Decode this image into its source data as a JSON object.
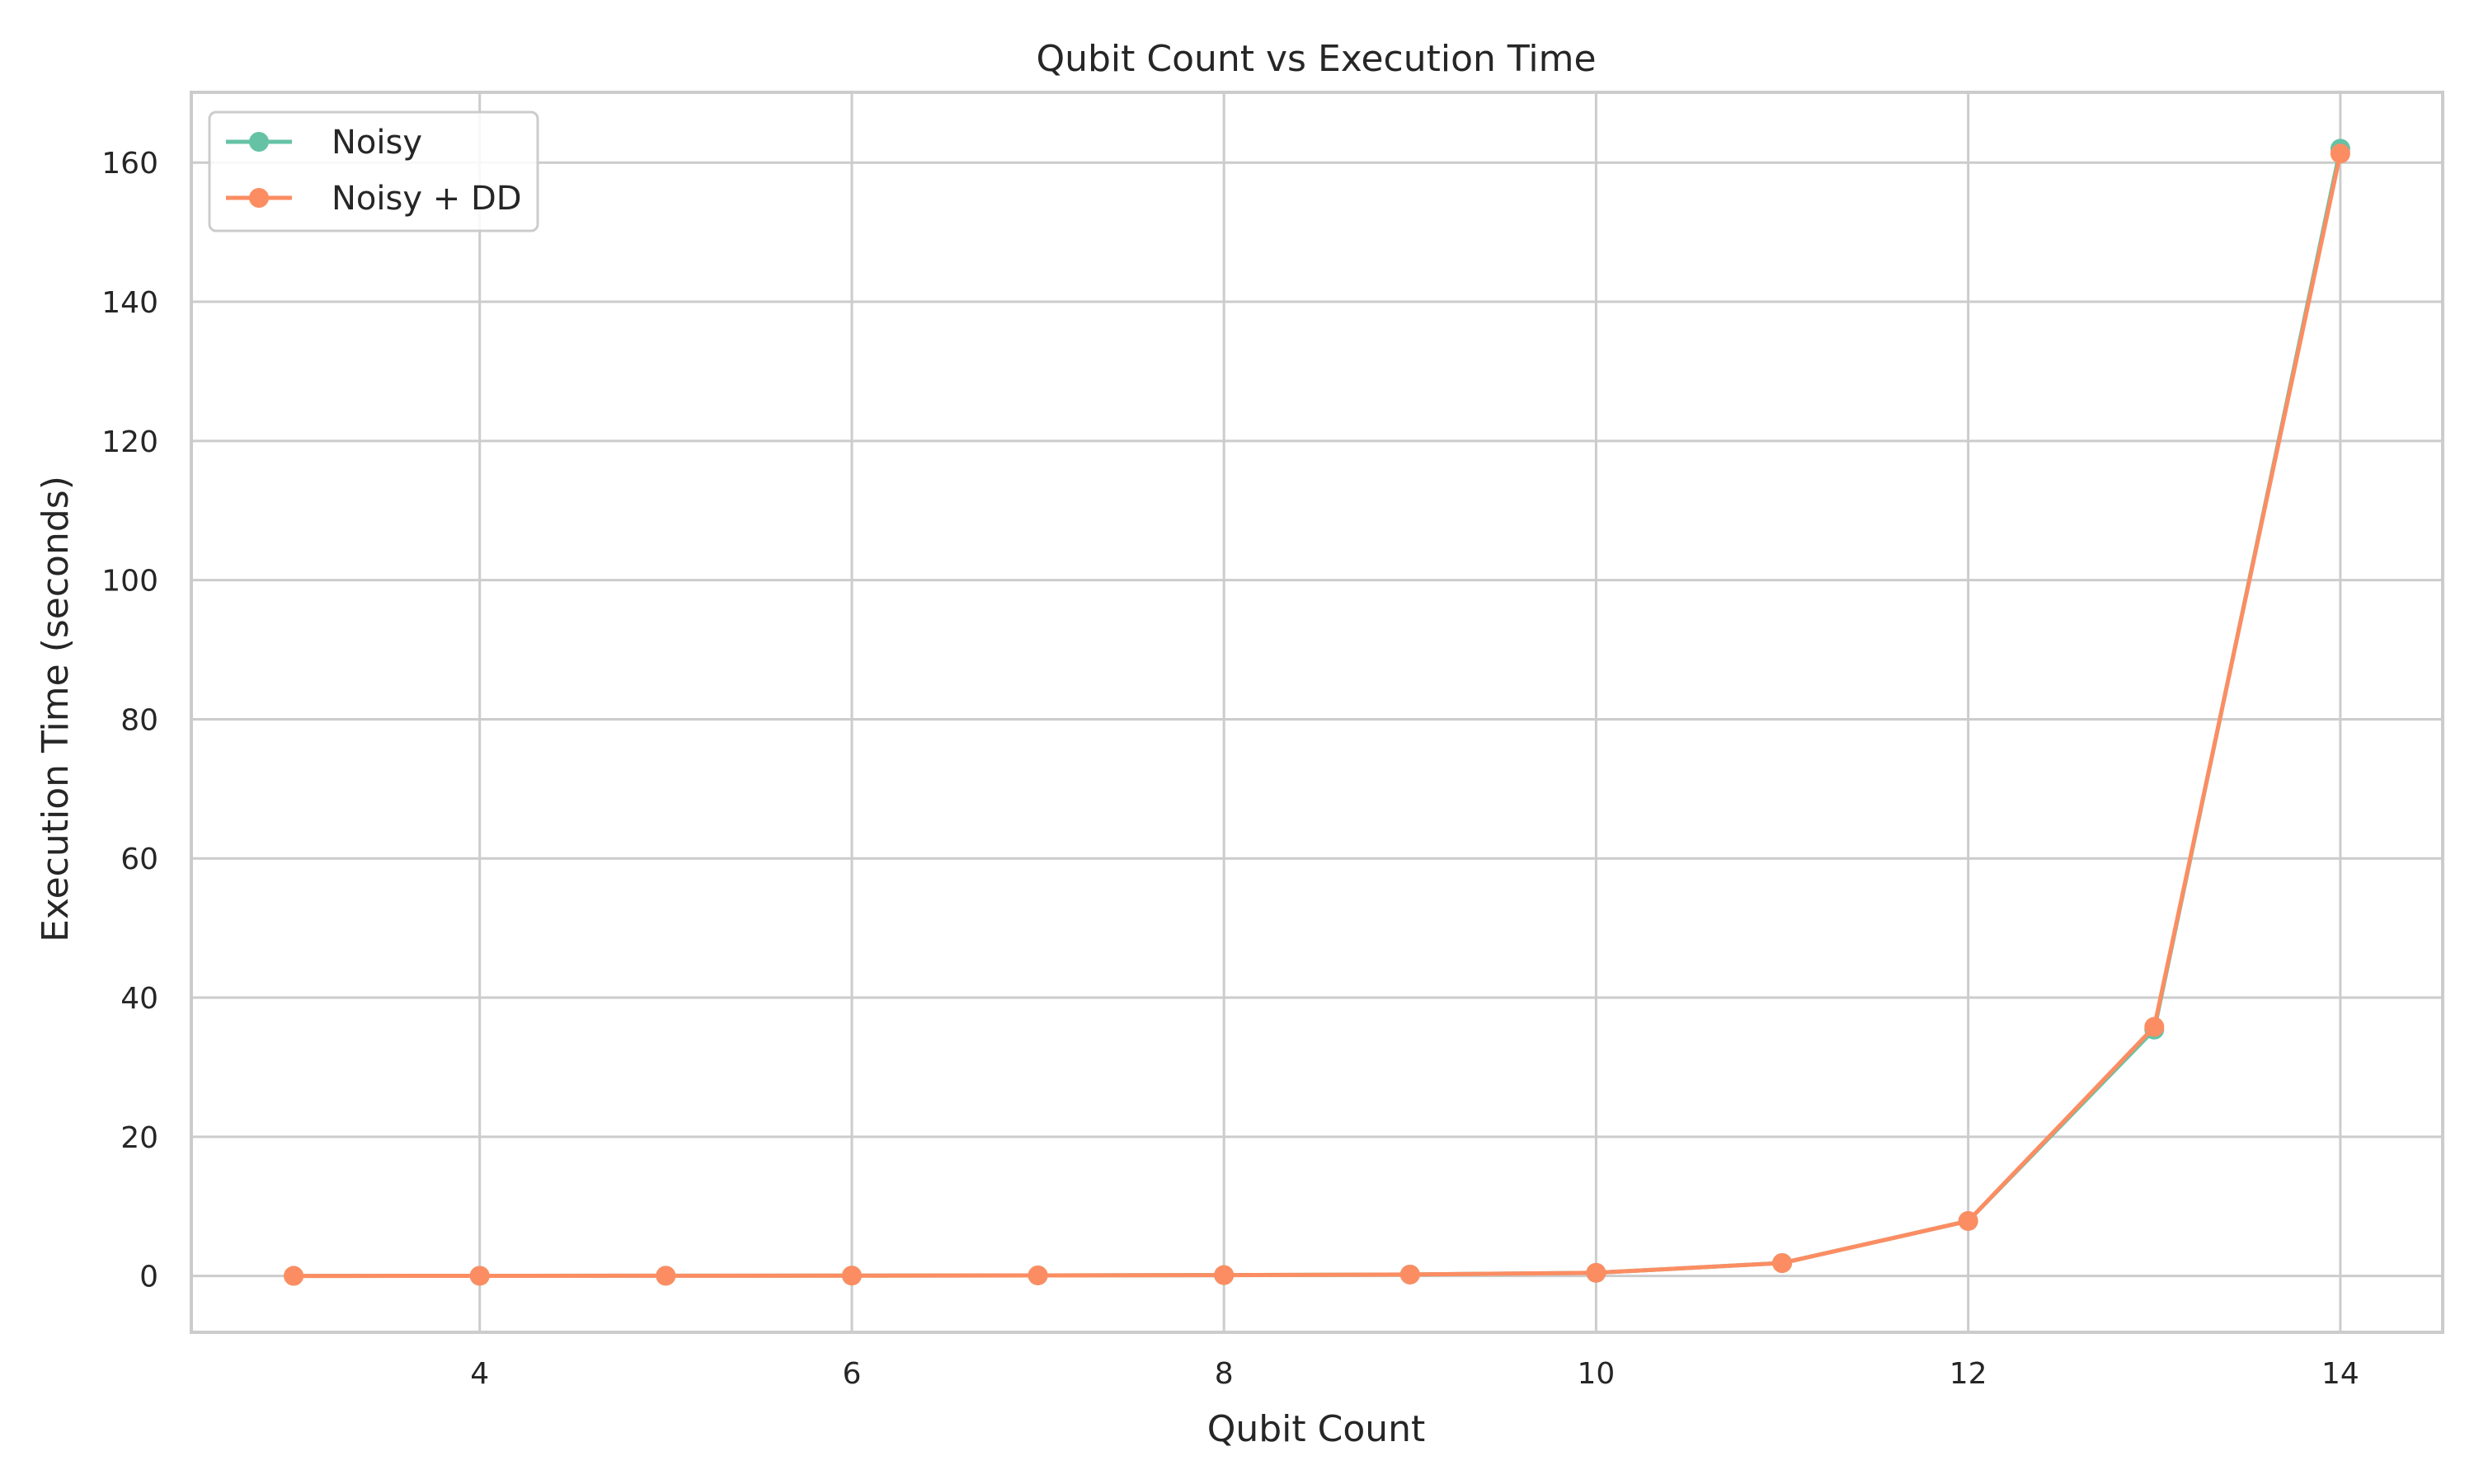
{
  "chart_data": {
    "type": "line",
    "title": "Qubit Count vs Execution Time",
    "xlabel": "Qubit Count",
    "ylabel": "Execution Time (seconds)",
    "xlim": [
      2.45,
      14.55
    ],
    "ylim": [
      -8.1,
      170.1
    ],
    "xticks": [
      4,
      6,
      8,
      10,
      12,
      14
    ],
    "yticks": [
      0,
      20,
      40,
      60,
      80,
      100,
      120,
      140,
      160
    ],
    "grid": true,
    "legend_position": "top-left",
    "x": [
      3,
      4,
      5,
      6,
      7,
      8,
      9,
      10,
      11,
      12,
      13,
      14
    ],
    "series": [
      {
        "name": "Noisy",
        "color": "#66c2a5",
        "marker": "circle",
        "values": [
          0.01,
          0.02,
          0.03,
          0.05,
          0.08,
          0.12,
          0.2,
          0.45,
          1.85,
          7.9,
          35.4,
          162.0
        ]
      },
      {
        "name": "Noisy + DD",
        "color": "#fc8d62",
        "marker": "circle",
        "values": [
          0.01,
          0.02,
          0.03,
          0.05,
          0.08,
          0.12,
          0.2,
          0.45,
          1.85,
          7.9,
          35.8,
          161.3
        ]
      }
    ]
  }
}
